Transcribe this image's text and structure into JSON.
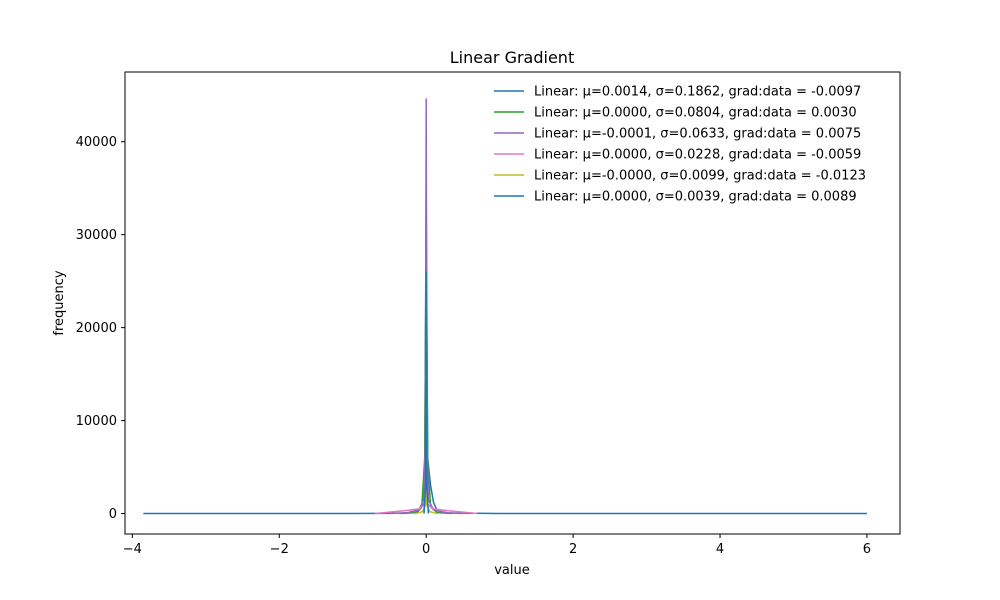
{
  "chart_data": {
    "type": "line",
    "title": "Linear Gradient",
    "xlabel": "value",
    "ylabel": "frequency",
    "xlim": [
      -4.1,
      6.45
    ],
    "ylim": [
      -2200,
      47500
    ],
    "x_ticks": [
      {
        "value": -4,
        "label": "−4"
      },
      {
        "value": -2,
        "label": "−2"
      },
      {
        "value": 0,
        "label": "0"
      },
      {
        "value": 2,
        "label": "2"
      },
      {
        "value": 4,
        "label": "4"
      },
      {
        "value": 6,
        "label": "6"
      }
    ],
    "y_ticks": [
      {
        "value": 0,
        "label": "0"
      },
      {
        "value": 10000,
        "label": "10000"
      },
      {
        "value": 20000,
        "label": "20000"
      },
      {
        "value": 30000,
        "label": "30000"
      },
      {
        "value": 40000,
        "label": "40000"
      }
    ],
    "legend_position": "top-right",
    "grid": false,
    "series": [
      {
        "name": "Linear: μ=0.0014, σ=0.1862, grad:data = -0.0097",
        "color": "#1f77b4",
        "points": [
          [
            -3.85,
            0
          ],
          [
            -1.0,
            0
          ],
          [
            -0.3,
            40
          ],
          [
            -0.12,
            150
          ],
          [
            -0.05,
            800
          ],
          [
            -0.02,
            3500
          ],
          [
            0.0,
            34500
          ],
          [
            0.02,
            6000
          ],
          [
            0.06,
            3000
          ],
          [
            0.1,
            1200
          ],
          [
            0.15,
            300
          ],
          [
            0.3,
            60
          ],
          [
            1.0,
            5
          ],
          [
            6.0,
            0
          ]
        ]
      },
      {
        "name": "Linear: μ=0.0000, σ=0.0804, grad:data = 0.0030",
        "color": "#2ca02c",
        "points": [
          [
            -0.35,
            0
          ],
          [
            -0.15,
            100
          ],
          [
            -0.06,
            700
          ],
          [
            -0.02,
            6000
          ],
          [
            0.0,
            29000
          ],
          [
            0.02,
            6000
          ],
          [
            0.06,
            700
          ],
          [
            0.15,
            100
          ],
          [
            0.35,
            0
          ]
        ]
      },
      {
        "name": "Linear: μ=-0.0001, σ=0.0633, grad:data = 0.0075",
        "color": "#9467bd",
        "points": [
          [
            -0.5,
            0
          ],
          [
            -0.25,
            100
          ],
          [
            -0.1,
            400
          ],
          [
            -0.03,
            1500
          ],
          [
            -0.01,
            8000
          ],
          [
            0.0,
            44600
          ],
          [
            0.01,
            8000
          ],
          [
            0.03,
            1500
          ],
          [
            0.1,
            400
          ],
          [
            0.25,
            100
          ],
          [
            0.5,
            0
          ]
        ]
      },
      {
        "name": "Linear: μ=0.0000, σ=0.0228, grad:data = -0.0059",
        "color": "#e377c2",
        "points": [
          [
            -0.7,
            0
          ],
          [
            -0.5,
            150
          ],
          [
            -0.3,
            300
          ],
          [
            -0.1,
            500
          ],
          [
            -0.03,
            900
          ],
          [
            0.0,
            1400
          ],
          [
            0.03,
            900
          ],
          [
            0.1,
            500
          ],
          [
            0.3,
            300
          ],
          [
            0.5,
            150
          ],
          [
            0.7,
            0
          ]
        ]
      },
      {
        "name": "Linear: μ=-0.0000, σ=0.0099, grad:data = -0.0123",
        "color": "#bcbd22",
        "points": [
          [
            -0.15,
            0
          ],
          [
            -0.05,
            200
          ],
          [
            -0.01,
            900
          ],
          [
            0.0,
            2600
          ],
          [
            0.01,
            900
          ],
          [
            0.05,
            200
          ],
          [
            0.15,
            0
          ]
        ]
      },
      {
        "name": "Linear: μ=0.0000, σ=0.0039, grad:data = 0.0089",
        "color": "#1f77b4",
        "points": [
          [
            -0.03,
            0
          ],
          [
            -0.008,
            3000
          ],
          [
            0.0,
            26000
          ],
          [
            0.008,
            3000
          ],
          [
            0.03,
            0
          ]
        ]
      }
    ]
  }
}
